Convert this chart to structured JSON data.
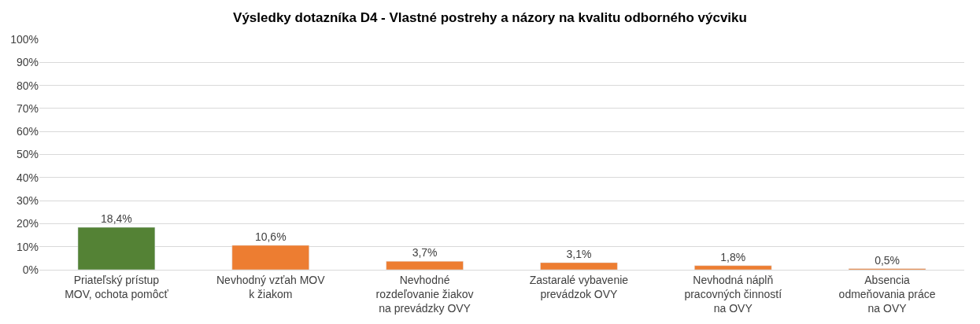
{
  "chart_data": {
    "type": "bar",
    "title": "Výsledky dotazníka D4 - Vlastné postrehy a názory na kvalitu odborného výcviku",
    "categories": [
      "Priateľský prístup MOV, ochota pomôcť",
      "Nevhodný vzťah MOV k žiakom",
      "Nevhodné rozdeľovanie žiakov na prevádzky OVY",
      "Zastaralé vybavenie prevádzok OVY",
      "Nevhodná náplň pracovných činností na OVY",
      "Absencia odmeňovania práce na OVY"
    ],
    "values": [
      18.4,
      10.6,
      3.7,
      3.1,
      1.8,
      0.5
    ],
    "colors": [
      "#548235",
      "#ed7d31",
      "#ed7d31",
      "#ed7d31",
      "#ed7d31",
      "#ed7d31"
    ],
    "value_labels": [
      "18,4%",
      "10,6%",
      "3,7%",
      "3,1%",
      "1,8%",
      "0,5%"
    ],
    "ylim": [
      0,
      100
    ],
    "yticks": [
      {
        "value": 0,
        "label": "0%"
      },
      {
        "value": 10,
        "label": "10%"
      },
      {
        "value": 20,
        "label": "20%"
      },
      {
        "value": 30,
        "label": "30%"
      },
      {
        "value": 40,
        "label": "40%"
      },
      {
        "value": 50,
        "label": "50%"
      },
      {
        "value": 60,
        "label": "60%"
      },
      {
        "value": 70,
        "label": "70%"
      },
      {
        "value": 80,
        "label": "80%"
      },
      {
        "value": 90,
        "label": "90%"
      },
      {
        "value": 100,
        "label": "100%"
      }
    ],
    "grid": "y"
  }
}
